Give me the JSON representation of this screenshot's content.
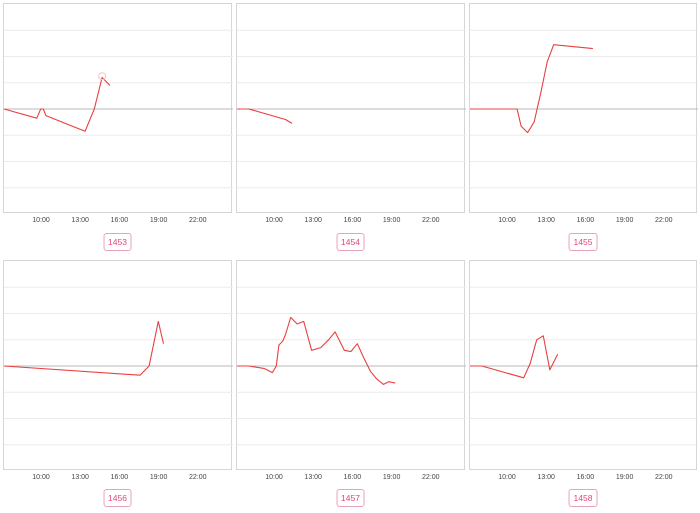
{
  "colors": {
    "line": "#e8403f",
    "grid": "#ebebeb",
    "zero": "#b9b9b9",
    "border": "#d6d6d6",
    "badge": "#e0457a"
  },
  "x_ticks": [
    "10:00",
    "13:00",
    "16:00",
    "19:00",
    "22:00"
  ],
  "chart_data": [
    {
      "type": "line",
      "label": "1453",
      "x_tick_labels": [
        "10:00",
        "13:00",
        "16:00",
        "19:00",
        "22:00"
      ],
      "xlim": [
        "07:00",
        "23:59"
      ],
      "ylim": [
        -4,
        4
      ],
      "series": [
        {
          "values": [
            [
              7.0,
              0
            ],
            [
              9.6,
              -0.35
            ],
            [
              9.9,
              0
            ],
            [
              10.1,
              0
            ],
            [
              10.3,
              -0.25
            ],
            [
              13.3,
              -0.85
            ],
            [
              14.0,
              0
            ],
            [
              14.6,
              1.2
            ],
            [
              15.2,
              0.9
            ]
          ]
        }
      ],
      "marker": [
        14.6,
        1.25
      ]
    },
    {
      "type": "line",
      "label": "1454",
      "xlim": [
        "07:00",
        "23:59"
      ],
      "ylim": [
        -4,
        4
      ],
      "series": [
        {
          "values": [
            [
              7.0,
              0
            ],
            [
              8.0,
              0
            ],
            [
              10.8,
              -0.4
            ],
            [
              11.3,
              -0.55
            ]
          ]
        }
      ]
    },
    {
      "type": "line",
      "label": "1455",
      "xlim": [
        "07:00",
        "23:59"
      ],
      "ylim": [
        -4,
        4
      ],
      "series": [
        {
          "values": [
            [
              7.0,
              0
            ],
            [
              10.7,
              0
            ],
            [
              11.0,
              -0.65
            ],
            [
              11.5,
              -0.9
            ],
            [
              12.0,
              -0.5
            ],
            [
              12.5,
              0.6
            ],
            [
              13.0,
              1.8
            ],
            [
              13.5,
              2.45
            ],
            [
              16.5,
              2.3
            ]
          ]
        }
      ]
    },
    {
      "type": "line",
      "label": "1456",
      "xlim": [
        "07:00",
        "23:59"
      ],
      "ylim": [
        -4,
        4
      ],
      "series": [
        {
          "values": [
            [
              7.0,
              0
            ],
            [
              17.5,
              -0.35
            ],
            [
              18.2,
              0
            ],
            [
              18.9,
              1.7
            ],
            [
              19.3,
              0.85
            ]
          ]
        }
      ]
    },
    {
      "type": "line",
      "label": "1457",
      "xlim": [
        "07:00",
        "23:59"
      ],
      "ylim": [
        -4,
        4
      ],
      "series": [
        {
          "values": [
            [
              7.0,
              0
            ],
            [
              8.0,
              0
            ],
            [
              9.2,
              -0.1
            ],
            [
              9.8,
              -0.25
            ],
            [
              10.1,
              0
            ],
            [
              10.3,
              0.8
            ],
            [
              10.6,
              0.95
            ],
            [
              10.8,
              1.2
            ],
            [
              11.2,
              1.85
            ],
            [
              11.7,
              1.6
            ],
            [
              12.2,
              1.7
            ],
            [
              12.8,
              0.6
            ],
            [
              13.5,
              0.7
            ],
            [
              14.1,
              1.0
            ],
            [
              14.6,
              1.3
            ],
            [
              15.3,
              0.6
            ],
            [
              15.8,
              0.55
            ],
            [
              16.3,
              0.85
            ],
            [
              16.8,
              0.3
            ],
            [
              17.3,
              -0.2
            ],
            [
              17.8,
              -0.5
            ],
            [
              18.3,
              -0.7
            ],
            [
              18.7,
              -0.6
            ],
            [
              19.2,
              -0.65
            ]
          ]
        }
      ]
    },
    {
      "type": "line",
      "label": "1458",
      "xlim": [
        "07:00",
        "23:59"
      ],
      "ylim": [
        -4,
        4
      ],
      "series": [
        {
          "values": [
            [
              7.0,
              0
            ],
            [
              8.0,
              0
            ],
            [
              11.2,
              -0.45
            ],
            [
              11.7,
              0.1
            ],
            [
              12.2,
              1.0
            ],
            [
              12.7,
              1.15
            ],
            [
              13.2,
              -0.15
            ],
            [
              13.8,
              0.45
            ]
          ]
        }
      ]
    }
  ]
}
